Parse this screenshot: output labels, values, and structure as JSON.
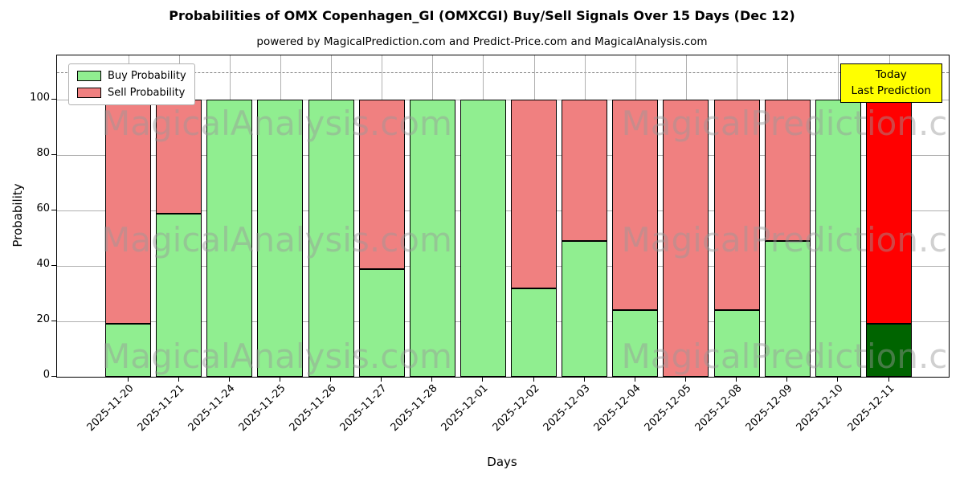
{
  "chart_data": {
    "type": "bar",
    "stacked": true,
    "title": "Probabilities of OMX Copenhagen_GI (OMXCGI) Buy/Sell Signals Over 15 Days (Dec 12)",
    "subtitle": "powered by MagicalPrediction.com and Predict-Price.com and MagicalAnalysis.com",
    "xlabel": "Days",
    "ylabel": "Probability",
    "categories": [
      "2025-11-20",
      "2025-11-21",
      "2025-11-24",
      "2025-11-25",
      "2025-11-26",
      "2025-11-27",
      "2025-11-28",
      "2025-12-01",
      "2025-12-02",
      "2025-12-03",
      "2025-12-04",
      "2025-12-05",
      "2025-12-08",
      "2025-12-09",
      "2025-12-10",
      "2025-12-11"
    ],
    "series": [
      {
        "name": "Buy Probability",
        "color": "#90ee90",
        "values": [
          19,
          59,
          100,
          100,
          100,
          39,
          100,
          100,
          32,
          49,
          24,
          0,
          24,
          49,
          100,
          19
        ]
      },
      {
        "name": "Sell Probability",
        "color": "#f08080",
        "values": [
          81,
          41,
          0,
          0,
          0,
          61,
          0,
          0,
          68,
          51,
          76,
          100,
          76,
          51,
          0,
          81
        ]
      }
    ],
    "last_bar_colors": {
      "buy": "#006400",
      "sell": "#ff0000"
    },
    "ylim": [
      0,
      116
    ],
    "yticks": [
      0,
      20,
      40,
      60,
      80,
      100
    ],
    "dashed_line_y": 110,
    "grid": true,
    "legend_position": "upper left",
    "annotation": {
      "lines": [
        "Today",
        "Last Prediction"
      ],
      "bg": "#ffff00"
    },
    "watermark": {
      "texts": [
        "MagicalAnalysis.com",
        "MagicalPrediction.com"
      ],
      "color": "#999999"
    }
  }
}
